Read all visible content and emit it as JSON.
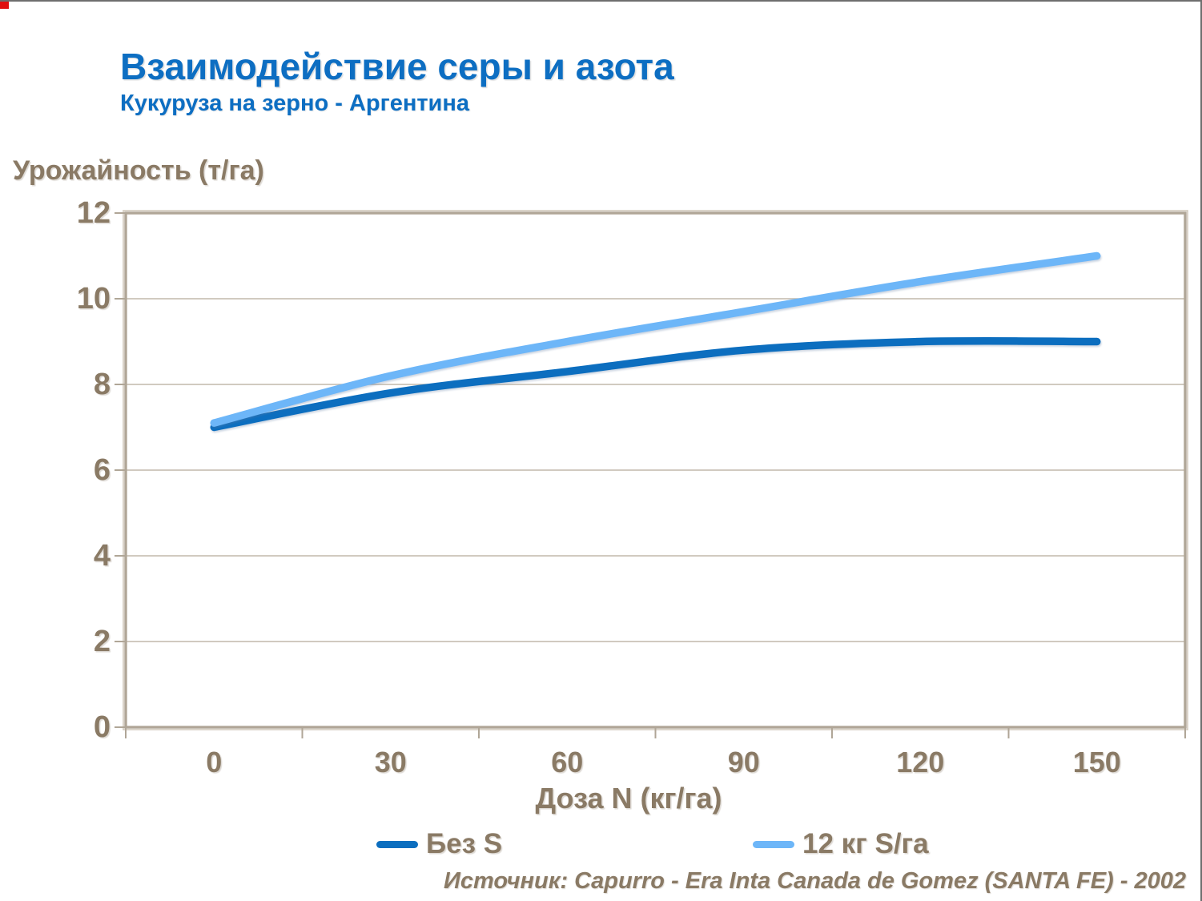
{
  "header": {
    "title": "Взаимодействие серы и азота",
    "subtitle": "Кукуруза на зерно - Аргентина"
  },
  "footer": {
    "source": "Источник: Capurro -  Era Inta Canada de Gomez (SANTA FE) - 2002"
  },
  "colors": {
    "title_blue": "#0d6ec2",
    "label_taupe": "#8a7a65",
    "axis_line": "#b0a697",
    "axis_outer_line": "#d2cabd",
    "gridline": "#c2b9ab",
    "series_dark_blue": "#0c6ebf",
    "series_light_blue": "#6db6f8",
    "corner_marker_red": "#e01010"
  },
  "chart_data": {
    "type": "line",
    "title": "Взаимодействие серы и азота",
    "subtitle": "Кукуруза на зерно - Аргентина",
    "xlabel": "Доза N (кг/га)",
    "ylabel": "Урожайность (т/га)",
    "categories": [
      0,
      30,
      60,
      90,
      120,
      150
    ],
    "series": [
      {
        "name": "Без S",
        "color": "#0c6ebf",
        "values": [
          7.0,
          7.8,
          8.3,
          8.8,
          9.0,
          9.0
        ]
      },
      {
        "name": "12 кг S/га",
        "color": "#6db6f8",
        "values": [
          7.1,
          8.2,
          9.0,
          9.7,
          10.4,
          11.0
        ]
      }
    ],
    "ylim": [
      0,
      12
    ],
    "y_ticks": [
      0,
      2,
      4,
      6,
      8,
      10,
      12
    ],
    "grid": "horizontal",
    "legend_position": "bottom",
    "smooth_lines": true
  }
}
